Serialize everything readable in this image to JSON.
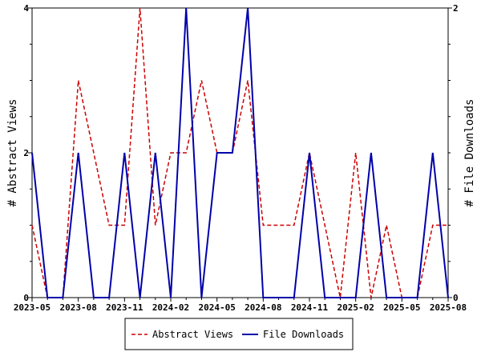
{
  "chart_data": {
    "type": "line",
    "title": "",
    "x": [
      "2023-05",
      "2023-06",
      "2023-07",
      "2023-08",
      "2023-09",
      "2023-10",
      "2023-11",
      "2023-12",
      "2024-01",
      "2024-02",
      "2024-03",
      "2024-04",
      "2024-05",
      "2024-06",
      "2024-07",
      "2024-08",
      "2024-09",
      "2024-10",
      "2024-11",
      "2024-12",
      "2025-01",
      "2025-02",
      "2025-03",
      "2025-04",
      "2025-05",
      "2025-06",
      "2025-07",
      "2025-08"
    ],
    "x_ticks": [
      "2023-05",
      "2023-08",
      "2023-11",
      "2024-02",
      "2024-05",
      "2024-08",
      "2024-11",
      "2025-02",
      "2025-05",
      "2025-08"
    ],
    "y_left": {
      "label": "# Abstract Views",
      "lim": [
        0,
        4
      ],
      "ticks": [
        "0",
        "2",
        "4"
      ]
    },
    "y_right": {
      "label": "# File Downloads",
      "lim": [
        0,
        2
      ],
      "ticks": [
        "0",
        "2"
      ]
    },
    "series": [
      {
        "name": "Abstract Views",
        "axis": "left",
        "color": "#cc0000",
        "style": "dashed",
        "values": [
          1,
          0,
          0,
          3,
          2,
          1,
          1,
          4,
          1,
          2,
          2,
          3,
          2,
          2,
          3,
          1,
          1,
          1,
          2,
          1,
          0,
          2,
          0,
          1,
          0,
          0,
          1,
          1
        ]
      },
      {
        "name": "File Downloads",
        "axis": "right",
        "color": "#0000aa",
        "style": "solid",
        "values": [
          1,
          0,
          0,
          1,
          0,
          0,
          1,
          0,
          1,
          0,
          2,
          0,
          1,
          1,
          2,
          0,
          0,
          0,
          1,
          0,
          0,
          0,
          1,
          0,
          0,
          0,
          1,
          0
        ]
      }
    ],
    "legend": {
      "placement": "bottom-center",
      "entries": [
        "Abstract Views",
        "File Downloads"
      ]
    },
    "grid": false
  }
}
